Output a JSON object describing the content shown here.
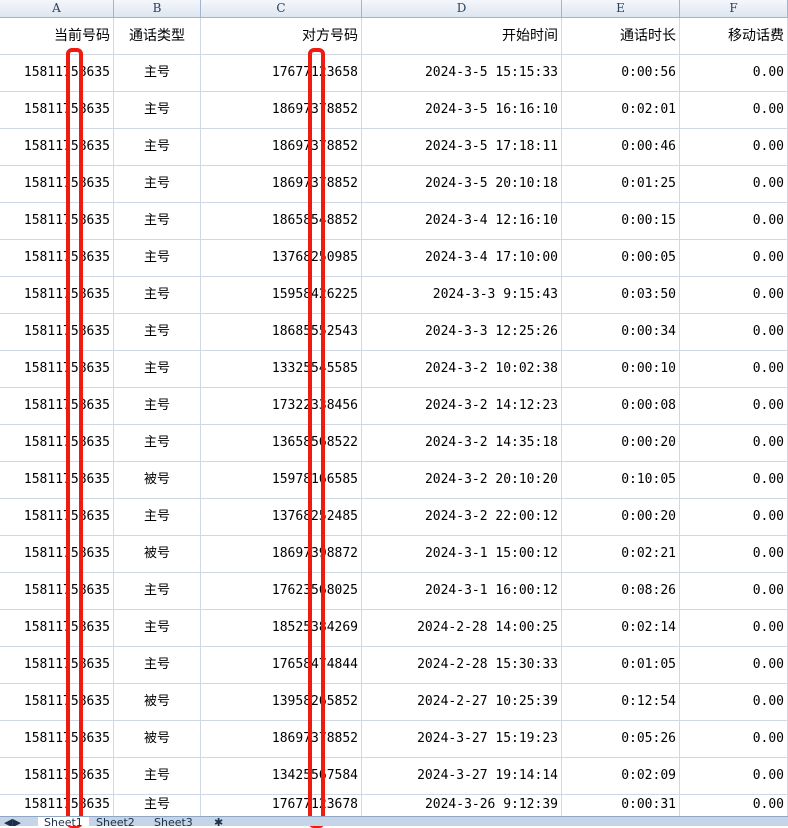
{
  "columns": [
    "A",
    "B",
    "C",
    "D",
    "E",
    "F"
  ],
  "headers": [
    "当前号码",
    "通话类型",
    "对方号码",
    "开始时间",
    "通话时长",
    "移动话费"
  ],
  "rows": [
    [
      "15811758635",
      "主号",
      "17677123658",
      "2024-3-5 15:15:33",
      "0:00:56",
      "0.00"
    ],
    [
      "15811758635",
      "主号",
      "18697378852",
      "2024-3-5 16:16:10",
      "0:02:01",
      "0.00"
    ],
    [
      "15811758635",
      "主号",
      "18697378852",
      "2024-3-5 17:18:11",
      "0:00:46",
      "0.00"
    ],
    [
      "15811758635",
      "主号",
      "18697378852",
      "2024-3-5 20:10:18",
      "0:01:25",
      "0.00"
    ],
    [
      "15811758635",
      "主号",
      "18658548852",
      "2024-3-4 12:16:10",
      "0:00:15",
      "0.00"
    ],
    [
      "15811758635",
      "主号",
      "13768250985",
      "2024-3-4 17:10:00",
      "0:00:05",
      "0.00"
    ],
    [
      "15811758635",
      "主号",
      "15958426225",
      "2024-3-3 9:15:43",
      "0:03:50",
      "0.00"
    ],
    [
      "15811758635",
      "主号",
      "18685552543",
      "2024-3-3 12:25:26",
      "0:00:34",
      "0.00"
    ],
    [
      "15811758635",
      "主号",
      "13325545585",
      "2024-3-2 10:02:38",
      "0:00:10",
      "0.00"
    ],
    [
      "15811758635",
      "主号",
      "17322338456",
      "2024-3-2 14:12:23",
      "0:00:08",
      "0.00"
    ],
    [
      "15811758635",
      "主号",
      "13658568522",
      "2024-3-2 14:35:18",
      "0:00:20",
      "0.00"
    ],
    [
      "15811758635",
      "被号",
      "15978166585",
      "2024-3-2 20:10:20",
      "0:10:05",
      "0.00"
    ],
    [
      "15811758635",
      "主号",
      "13768252485",
      "2024-3-2 22:00:12",
      "0:00:20",
      "0.00"
    ],
    [
      "15811758635",
      "被号",
      "18697398872",
      "2024-3-1 15:00:12",
      "0:02:21",
      "0.00"
    ],
    [
      "15811758635",
      "主号",
      "17623568025",
      "2024-3-1 16:00:12",
      "0:08:26",
      "0.00"
    ],
    [
      "15811758635",
      "主号",
      "18525384269",
      "2024-2-28 14:00:25",
      "0:02:14",
      "0.00"
    ],
    [
      "15811758635",
      "主号",
      "17658474844",
      "2024-2-28 15:30:33",
      "0:01:05",
      "0.00"
    ],
    [
      "15811758635",
      "被号",
      "13958265852",
      "2024-2-27 10:25:39",
      "0:12:54",
      "0.00"
    ],
    [
      "15811758635",
      "被号",
      "18697378852",
      "2024-3-27 15:19:23",
      "0:05:26",
      "0.00"
    ],
    [
      "15811758635",
      "主号",
      "13425567584",
      "2024-3-27 19:14:14",
      "0:02:09",
      "0.00"
    ],
    [
      "15811758635",
      "主号",
      "17677123678",
      "2024-3-26 9:12:39",
      "0:00:31",
      "0.00"
    ]
  ],
  "sheet_tabs": [
    "Sheet1",
    "Sheet2",
    "Sheet3"
  ],
  "redaction_color": "#f01a10"
}
